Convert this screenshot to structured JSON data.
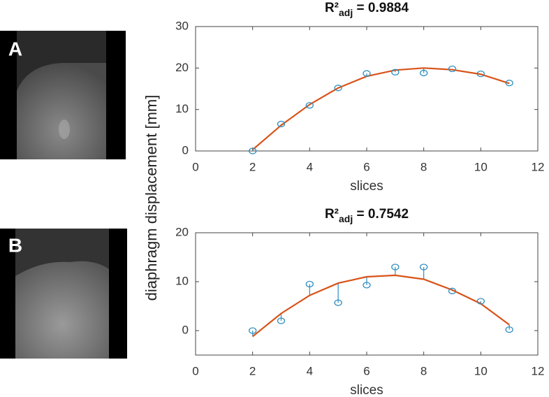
{
  "figure": {
    "panel_labels": [
      "A",
      "B"
    ],
    "ylabel": "diaphragm displacement [mm]"
  },
  "chart_data": [
    {
      "type": "line",
      "title": {
        "base": "R²",
        "sub": "adj",
        "rest": " = 0.9884"
      },
      "xlabel": "slices",
      "xlim": [
        0,
        12
      ],
      "xticks": [
        0,
        2,
        4,
        6,
        8,
        10,
        12
      ],
      "ylim": [
        0,
        30
      ],
      "yticks": [
        0,
        10,
        20,
        30
      ],
      "stems": true,
      "x": [
        2,
        3,
        4,
        5,
        6,
        7,
        8,
        9,
        10,
        11
      ],
      "series": [
        {
          "style": "circle",
          "color": "#2f8fc0",
          "values": [
            0,
            6.5,
            11,
            15.2,
            18.7,
            19,
            18.8,
            19.8,
            18.6,
            16.4
          ]
        },
        {
          "style": "line",
          "color": "#d95319",
          "values": [
            0.3,
            6.2,
            11.2,
            15.2,
            18,
            19.5,
            20,
            19.6,
            18.5,
            16.3
          ]
        }
      ]
    },
    {
      "type": "line",
      "title": {
        "base": "R²",
        "sub": "adj",
        "rest": " = 0.7542"
      },
      "xlabel": "slices",
      "xlim": [
        0,
        12
      ],
      "xticks": [
        0,
        2,
        4,
        6,
        8,
        10,
        12
      ],
      "ylim": [
        -5,
        20
      ],
      "yticks": [
        0,
        10,
        20
      ],
      "stems": true,
      "x": [
        2,
        3,
        4,
        5,
        6,
        7,
        8,
        9,
        10,
        11
      ],
      "series": [
        {
          "style": "circle",
          "color": "#2f8fc0",
          "values": [
            0,
            2,
            9.5,
            5.7,
            9.3,
            13,
            13,
            8.1,
            6,
            0.2
          ]
        },
        {
          "style": "line",
          "color": "#d95319",
          "values": [
            -1.2,
            3.5,
            7.2,
            9.7,
            11,
            11.3,
            10.5,
            8.3,
            5.5,
            1.2
          ]
        }
      ]
    }
  ]
}
